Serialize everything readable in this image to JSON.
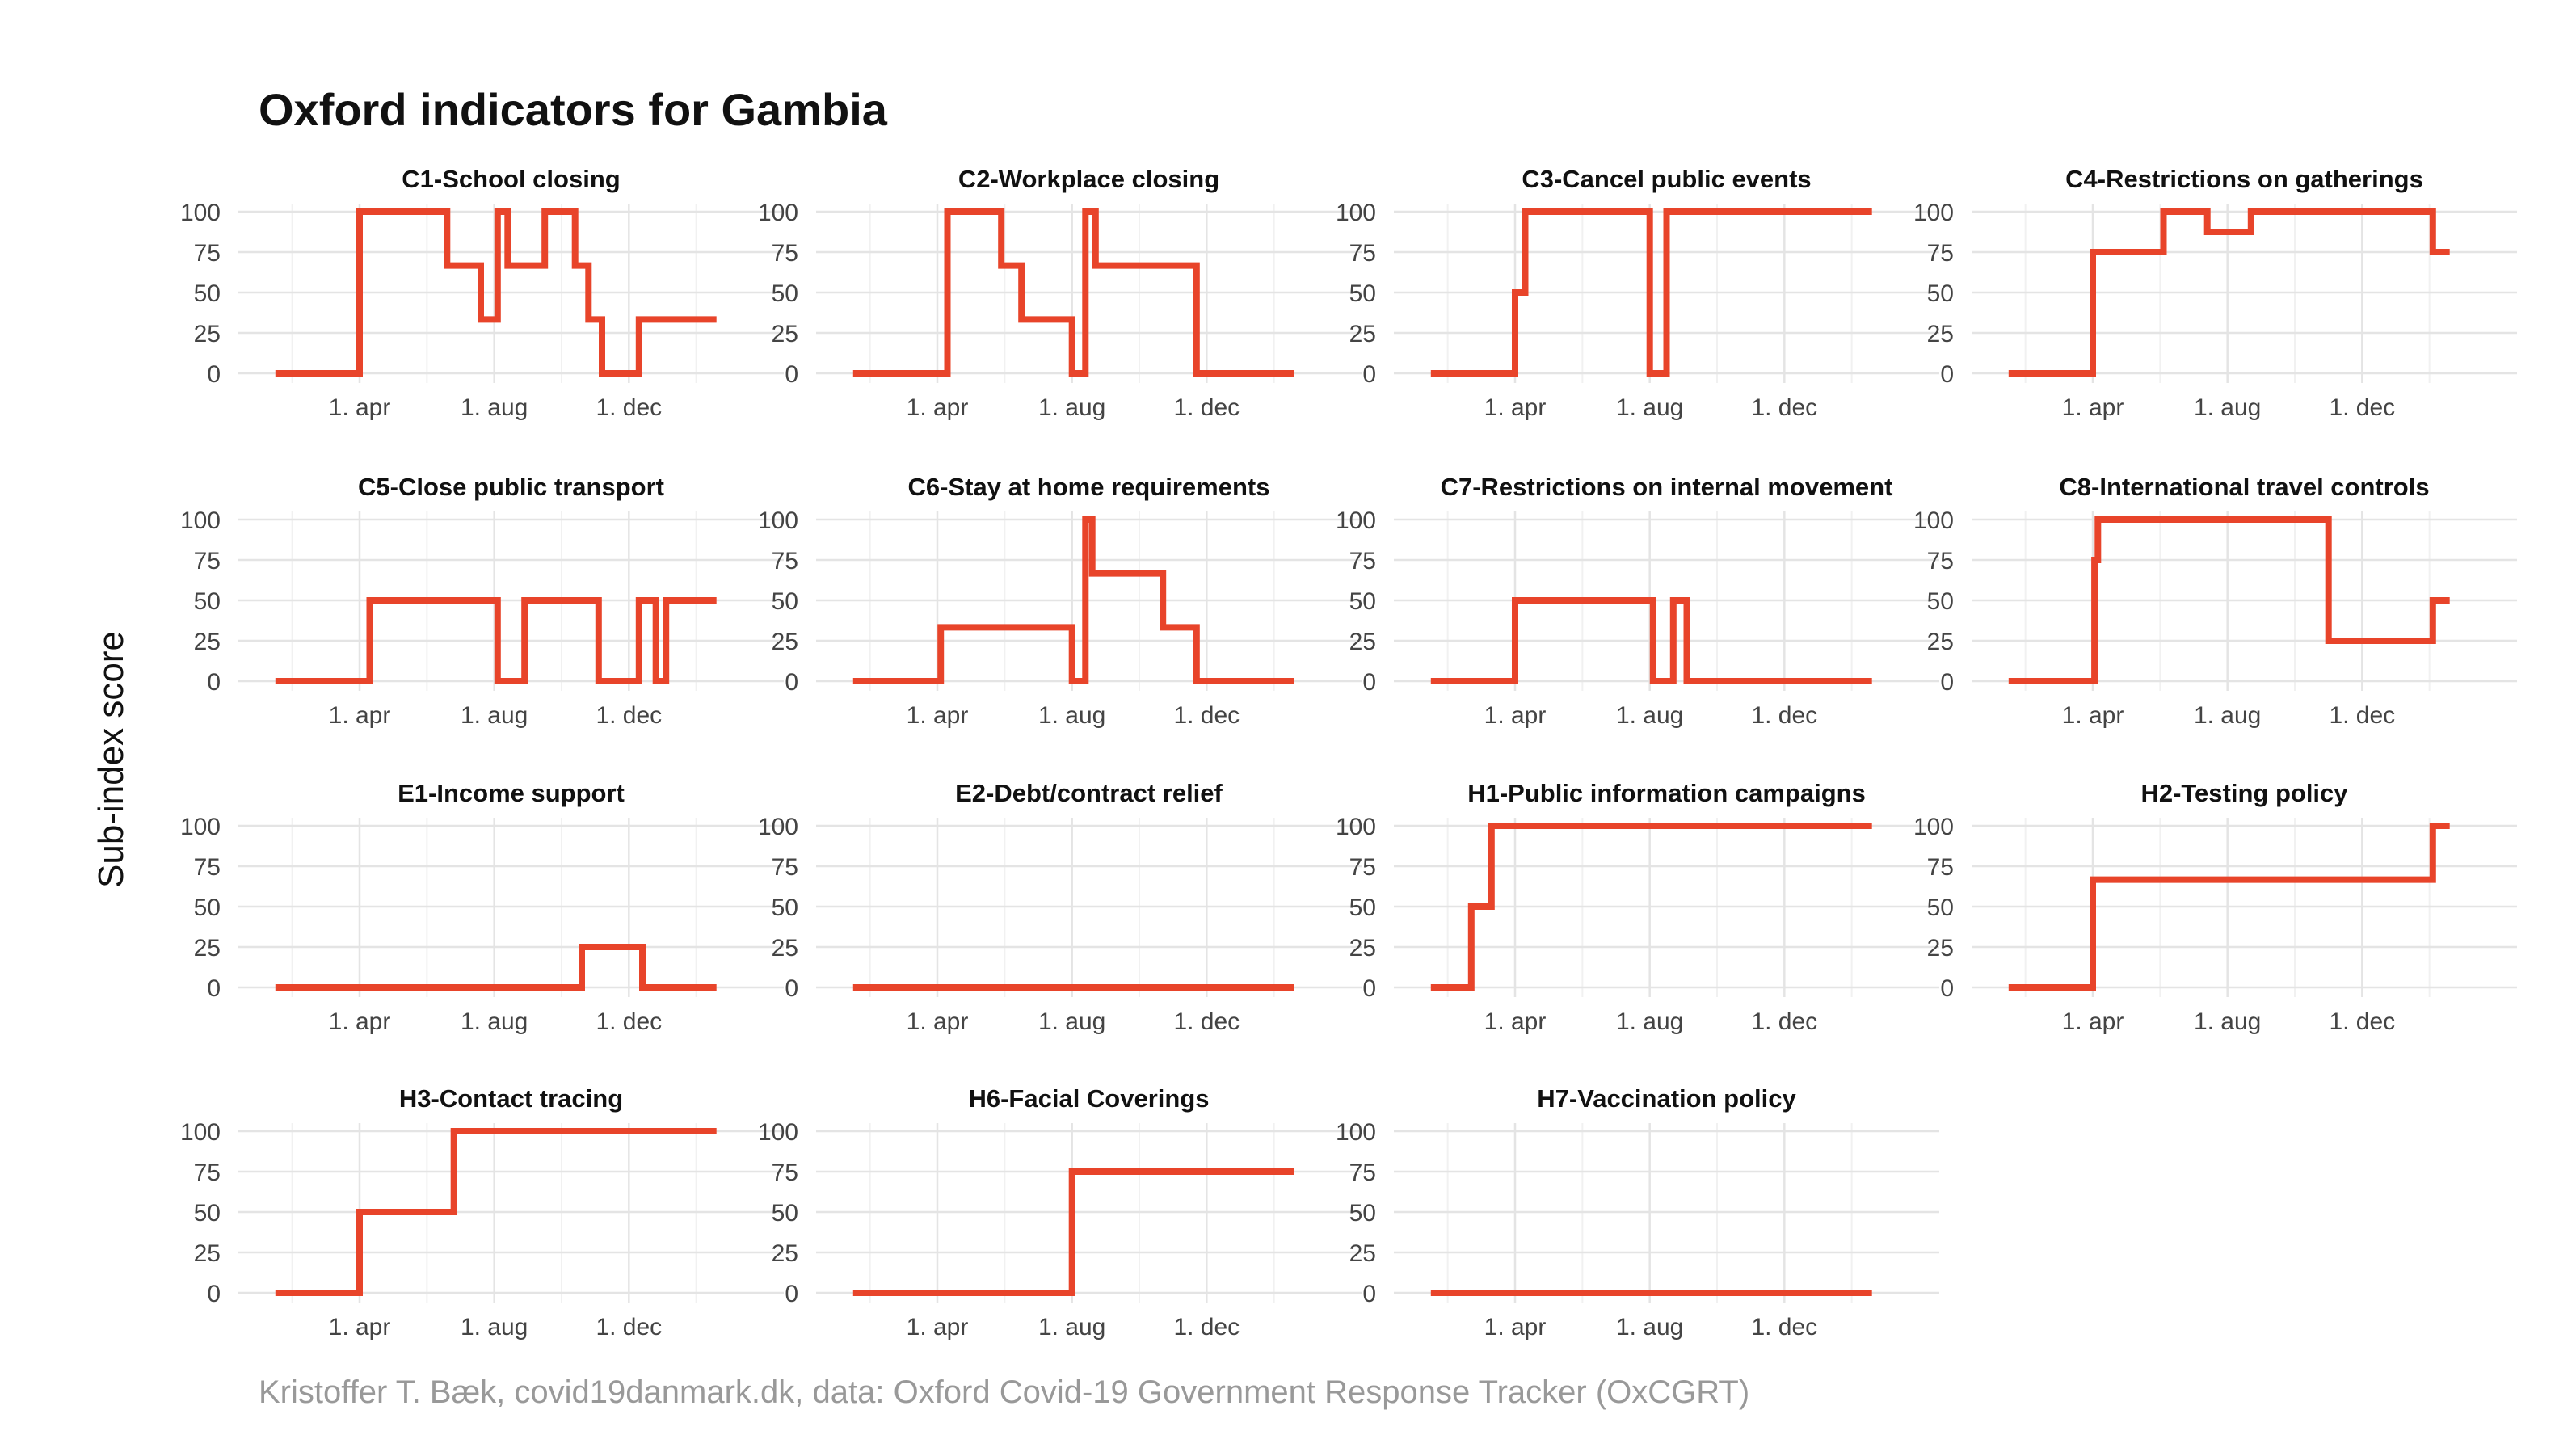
{
  "title": "Oxford indicators for Gambia",
  "ylabel": "Sub-index score",
  "caption": "Kristoffer T. Bæk, covid19danmark.dk, data: Oxford Covid-19 Government Response Tracker (OxCGRT)",
  "chart_data": {
    "type": "line",
    "layout": "faceted-4-columns",
    "x_unit": "months since 1 Jan 2020",
    "x_range": [
      0,
      15
    ],
    "x_ticks": [
      {
        "x": 3,
        "label": "1. apr"
      },
      {
        "x": 7,
        "label": "1. aug"
      },
      {
        "x": 11,
        "label": "1. dec"
      }
    ],
    "y_range": [
      0,
      100
    ],
    "y_ticks": [
      0,
      25,
      50,
      75,
      100
    ],
    "grid": true,
    "line_color": "#e8442a",
    "panels": [
      {
        "name": "C1-School closing",
        "steps": [
          [
            0.5,
            0
          ],
          [
            3,
            100
          ],
          [
            5.6,
            66.7
          ],
          [
            6.6,
            33.3
          ],
          [
            7.1,
            100
          ],
          [
            7.4,
            66.7
          ],
          [
            8.5,
            100
          ],
          [
            9.4,
            66.7
          ],
          [
            9.8,
            33.3
          ],
          [
            10.2,
            0
          ],
          [
            11.3,
            33.3
          ],
          [
            13.6,
            33.3
          ]
        ]
      },
      {
        "name": "C2-Workplace closing",
        "steps": [
          [
            0.5,
            0
          ],
          [
            3.3,
            100
          ],
          [
            4.9,
            66.7
          ],
          [
            5.5,
            33.3
          ],
          [
            7.0,
            0
          ],
          [
            7.4,
            100
          ],
          [
            7.7,
            66.7
          ],
          [
            10.7,
            0
          ],
          [
            13.6,
            0
          ]
        ]
      },
      {
        "name": "C3-Cancel public events",
        "steps": [
          [
            0.5,
            0
          ],
          [
            3,
            50
          ],
          [
            3.3,
            100
          ],
          [
            7.0,
            0
          ],
          [
            7.5,
            100
          ],
          [
            13.6,
            100
          ]
        ]
      },
      {
        "name": "C4-Restrictions on gatherings",
        "steps": [
          [
            0.5,
            0
          ],
          [
            3,
            75
          ],
          [
            5.1,
            100
          ],
          [
            6.4,
            87.5
          ],
          [
            7.7,
            100
          ],
          [
            13.1,
            75
          ],
          [
            13.6,
            75
          ]
        ]
      },
      {
        "name": "C5-Close public transport",
        "steps": [
          [
            0.5,
            0
          ],
          [
            3.3,
            50
          ],
          [
            7.1,
            0
          ],
          [
            7.9,
            50
          ],
          [
            10.1,
            0
          ],
          [
            11.3,
            50
          ],
          [
            11.8,
            0
          ],
          [
            12.1,
            50
          ],
          [
            13.6,
            50
          ]
        ]
      },
      {
        "name": "C6-Stay at home requirements",
        "steps": [
          [
            0.5,
            0
          ],
          [
            3.1,
            33.3
          ],
          [
            7.0,
            0
          ],
          [
            7.4,
            100
          ],
          [
            7.6,
            66.7
          ],
          [
            9.7,
            33.3
          ],
          [
            10.7,
            0
          ],
          [
            13.6,
            0
          ]
        ]
      },
      {
        "name": "C7-Restrictions on internal movement",
        "steps": [
          [
            0.5,
            0
          ],
          [
            3,
            50
          ],
          [
            7.1,
            0
          ],
          [
            7.7,
            50
          ],
          [
            8.1,
            0
          ],
          [
            13.6,
            0
          ]
        ]
      },
      {
        "name": "C8-International travel controls",
        "steps": [
          [
            0.5,
            0
          ],
          [
            3.05,
            75
          ],
          [
            3.15,
            100
          ],
          [
            10.0,
            25
          ],
          [
            13.1,
            50
          ],
          [
            13.6,
            50
          ]
        ]
      },
      {
        "name": "E1-Income support",
        "steps": [
          [
            0.5,
            0
          ],
          [
            9.6,
            25
          ],
          [
            11.4,
            0
          ],
          [
            13.6,
            0
          ]
        ]
      },
      {
        "name": "E2-Debt/contract relief",
        "steps": [
          [
            0.5,
            0
          ],
          [
            13.6,
            0
          ]
        ]
      },
      {
        "name": "H1-Public information campaigns",
        "steps": [
          [
            0.5,
            0
          ],
          [
            1.7,
            50
          ],
          [
            2.3,
            100
          ],
          [
            13.6,
            100
          ]
        ]
      },
      {
        "name": "H2-Testing policy",
        "steps": [
          [
            0.5,
            0
          ],
          [
            3,
            66.7
          ],
          [
            13.1,
            100
          ],
          [
            13.6,
            100
          ]
        ]
      },
      {
        "name": "H3-Contact tracing",
        "steps": [
          [
            0.5,
            0
          ],
          [
            3,
            50
          ],
          [
            5.8,
            100
          ],
          [
            13.6,
            100
          ]
        ]
      },
      {
        "name": "H6-Facial Coverings",
        "steps": [
          [
            0.5,
            0
          ],
          [
            7.0,
            75
          ],
          [
            13.6,
            75
          ]
        ]
      },
      {
        "name": "H7-Vaccination policy",
        "steps": [
          [
            0.5,
            0
          ],
          [
            13.6,
            0
          ]
        ]
      }
    ]
  }
}
